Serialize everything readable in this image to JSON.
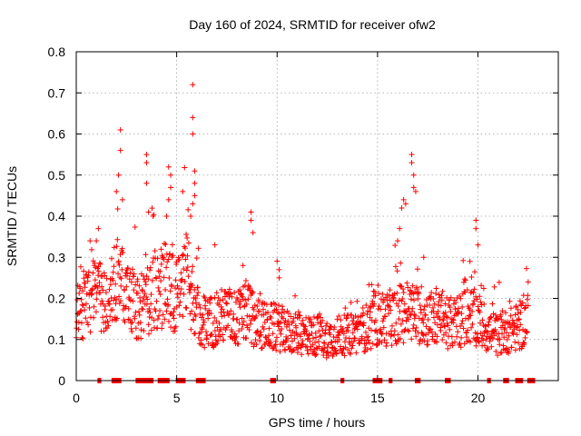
{
  "chart_data": {
    "type": "scatter",
    "title": "Day 160 of 2024, SRMTID for receiver ofw2",
    "xlabel": "GPS time / hours",
    "ylabel": "SRMTID / TECUs",
    "xlim": [
      0,
      24
    ],
    "ylim": [
      0,
      0.8
    ],
    "x_ticks": [
      "0",
      "5",
      "10",
      "15",
      "20"
    ],
    "y_ticks": [
      "0",
      "0.1",
      "0.2",
      "0.3",
      "0.4",
      "0.5",
      "0.6",
      "0.7",
      "0.8"
    ],
    "grid": true,
    "marker": "plus",
    "color": "#ff0000",
    "profile": [
      [
        0.0,
        0.14
      ],
      [
        0.5,
        0.19
      ],
      [
        1.0,
        0.21
      ],
      [
        1.5,
        0.19
      ],
      [
        2.0,
        0.24
      ],
      [
        2.5,
        0.22
      ],
      [
        3.0,
        0.17
      ],
      [
        3.5,
        0.2
      ],
      [
        4.0,
        0.21
      ],
      [
        4.5,
        0.24
      ],
      [
        5.0,
        0.2
      ],
      [
        5.5,
        0.25
      ],
      [
        6.0,
        0.16
      ],
      [
        6.5,
        0.14
      ],
      [
        7.0,
        0.15
      ],
      [
        7.5,
        0.16
      ],
      [
        8.0,
        0.15
      ],
      [
        8.5,
        0.17
      ],
      [
        9.0,
        0.14
      ],
      [
        9.5,
        0.13
      ],
      [
        10.0,
        0.13
      ],
      [
        10.5,
        0.12
      ],
      [
        11.0,
        0.11
      ],
      [
        11.5,
        0.11
      ],
      [
        12.0,
        0.11
      ],
      [
        12.5,
        0.1
      ],
      [
        13.0,
        0.11
      ],
      [
        13.5,
        0.11
      ],
      [
        14.0,
        0.12
      ],
      [
        14.5,
        0.13
      ],
      [
        15.0,
        0.15
      ],
      [
        15.5,
        0.15
      ],
      [
        16.0,
        0.16
      ],
      [
        16.5,
        0.17
      ],
      [
        17.0,
        0.16
      ],
      [
        17.5,
        0.15
      ],
      [
        18.0,
        0.15
      ],
      [
        18.5,
        0.14
      ],
      [
        19.0,
        0.14
      ],
      [
        19.5,
        0.16
      ],
      [
        20.0,
        0.15
      ],
      [
        20.5,
        0.12
      ],
      [
        21.0,
        0.11
      ],
      [
        21.5,
        0.12
      ],
      [
        22.0,
        0.13
      ],
      [
        22.5,
        0.15
      ]
    ],
    "peaks": [
      {
        "x": 2.2,
        "y": 0.61
      },
      {
        "x": 2.2,
        "y": 0.56
      },
      {
        "x": 2.1,
        "y": 0.5
      },
      {
        "x": 2.0,
        "y": 0.46
      },
      {
        "x": 2.3,
        "y": 0.44
      },
      {
        "x": 1.1,
        "y": 0.37
      },
      {
        "x": 1.0,
        "y": 0.34
      },
      {
        "x": 3.5,
        "y": 0.55
      },
      {
        "x": 3.5,
        "y": 0.53
      },
      {
        "x": 3.5,
        "y": 0.48
      },
      {
        "x": 3.6,
        "y": 0.41
      },
      {
        "x": 4.6,
        "y": 0.52
      },
      {
        "x": 4.7,
        "y": 0.5
      },
      {
        "x": 4.7,
        "y": 0.47
      },
      {
        "x": 4.6,
        "y": 0.44
      },
      {
        "x": 4.5,
        "y": 0.4
      },
      {
        "x": 5.3,
        "y": 0.46
      },
      {
        "x": 5.8,
        "y": 0.72
      },
      {
        "x": 5.8,
        "y": 0.64
      },
      {
        "x": 5.8,
        "y": 0.6
      },
      {
        "x": 5.9,
        "y": 0.51
      },
      {
        "x": 5.9,
        "y": 0.48
      },
      {
        "x": 5.9,
        "y": 0.45
      },
      {
        "x": 5.8,
        "y": 0.43
      },
      {
        "x": 5.7,
        "y": 0.4
      },
      {
        "x": 8.7,
        "y": 0.41
      },
      {
        "x": 8.7,
        "y": 0.39
      },
      {
        "x": 8.8,
        "y": 0.36
      },
      {
        "x": 10.1,
        "y": 0.27
      },
      {
        "x": 10.1,
        "y": 0.25
      },
      {
        "x": 16.2,
        "y": 0.42
      },
      {
        "x": 16.3,
        "y": 0.44
      },
      {
        "x": 16.4,
        "y": 0.43
      },
      {
        "x": 16.7,
        "y": 0.55
      },
      {
        "x": 16.7,
        "y": 0.53
      },
      {
        "x": 16.8,
        "y": 0.5
      },
      {
        "x": 16.8,
        "y": 0.47
      },
      {
        "x": 16.9,
        "y": 0.46
      },
      {
        "x": 16.0,
        "y": 0.34
      },
      {
        "x": 16.1,
        "y": 0.37
      },
      {
        "x": 17.3,
        "y": 0.3
      },
      {
        "x": 19.9,
        "y": 0.39
      },
      {
        "x": 19.9,
        "y": 0.37
      },
      {
        "x": 20.0,
        "y": 0.33
      },
      {
        "x": 19.6,
        "y": 0.29
      },
      {
        "x": 22.5,
        "y": 0.24
      },
      {
        "x": 6.9,
        "y": 0.33
      },
      {
        "x": 8.3,
        "y": 0.28
      }
    ],
    "zero_runs": [
      [
        1.1,
        1.2
      ],
      [
        1.8,
        2.2
      ],
      [
        3.0,
        3.8
      ],
      [
        4.1,
        4.6
      ],
      [
        5.0,
        5.4
      ],
      [
        6.0,
        6.4
      ],
      [
        9.7,
        9.9
      ],
      [
        13.2,
        13.3
      ],
      [
        14.8,
        15.2
      ],
      [
        15.6,
        15.7
      ],
      [
        16.9,
        17.1
      ],
      [
        18.4,
        18.6
      ],
      [
        20.5,
        20.6
      ],
      [
        21.3,
        21.5
      ],
      [
        21.9,
        22.2
      ],
      [
        22.5,
        22.8
      ]
    ],
    "sample_interval_hours": 0.016
  }
}
